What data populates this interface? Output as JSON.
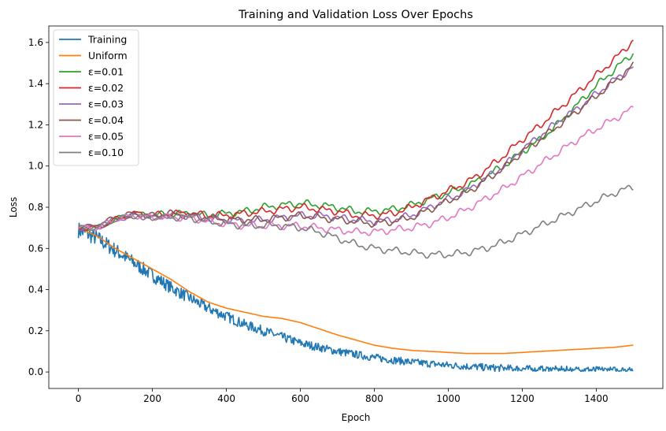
{
  "chart_data": {
    "type": "line",
    "title": "Training and Validation Loss Over Epochs",
    "xlabel": "Epoch",
    "ylabel": "Loss",
    "xlim": [
      -80,
      1580
    ],
    "ylim": [
      -0.08,
      1.68
    ],
    "xticks": [
      0,
      200,
      400,
      600,
      800,
      1000,
      1200,
      1400
    ],
    "yticks": [
      0.0,
      0.2,
      0.4,
      0.6,
      0.8,
      1.0,
      1.2,
      1.4,
      1.6
    ],
    "grid": false,
    "legend_position": "top-left",
    "series": [
      {
        "name": "Training",
        "color": "#1f77b4",
        "noise": 0.018,
        "x": [
          0,
          50,
          100,
          150,
          200,
          250,
          300,
          350,
          400,
          450,
          500,
          550,
          600,
          650,
          700,
          750,
          800,
          850,
          900,
          950,
          1000,
          1050,
          1100,
          1150,
          1200,
          1250,
          1300,
          1350,
          1400,
          1450,
          1500
        ],
        "y": [
          0.69,
          0.65,
          0.59,
          0.53,
          0.47,
          0.41,
          0.36,
          0.31,
          0.27,
          0.23,
          0.2,
          0.17,
          0.14,
          0.12,
          0.1,
          0.085,
          0.07,
          0.058,
          0.048,
          0.04,
          0.033,
          0.027,
          0.022,
          0.018,
          0.015,
          0.013,
          0.011,
          0.01,
          0.009,
          0.008,
          0.008
        ]
      },
      {
        "name": "Uniform",
        "color": "#ff7f0e",
        "noise": 0.0,
        "x": [
          0,
          50,
          100,
          150,
          200,
          250,
          300,
          350,
          400,
          450,
          500,
          550,
          600,
          650,
          700,
          750,
          800,
          850,
          900,
          950,
          1000,
          1050,
          1100,
          1150,
          1200,
          1250,
          1300,
          1350,
          1400,
          1450,
          1500
        ],
        "y": [
          0.7,
          0.66,
          0.6,
          0.55,
          0.5,
          0.45,
          0.39,
          0.34,
          0.31,
          0.29,
          0.27,
          0.26,
          0.24,
          0.21,
          0.18,
          0.155,
          0.13,
          0.115,
          0.105,
          0.1,
          0.095,
          0.09,
          0.09,
          0.09,
          0.095,
          0.1,
          0.105,
          0.11,
          0.115,
          0.12,
          0.13
        ]
      },
      {
        "name": "ε=0.01",
        "color": "#2ca02c",
        "noise": 0.0,
        "x": [
          0,
          50,
          100,
          150,
          200,
          250,
          300,
          350,
          400,
          450,
          500,
          550,
          600,
          650,
          700,
          750,
          800,
          850,
          900,
          950,
          1000,
          1050,
          1100,
          1150,
          1200,
          1250,
          1300,
          1350,
          1400,
          1450,
          1500
        ],
        "y": [
          0.7,
          0.7,
          0.74,
          0.77,
          0.76,
          0.77,
          0.77,
          0.76,
          0.77,
          0.78,
          0.8,
          0.81,
          0.82,
          0.81,
          0.8,
          0.78,
          0.78,
          0.79,
          0.81,
          0.84,
          0.87,
          0.9,
          0.95,
          1.0,
          1.07,
          1.13,
          1.21,
          1.3,
          1.39,
          1.47,
          1.55
        ]
      },
      {
        "name": "ε=0.02",
        "color": "#d62728",
        "noise": 0.0,
        "x": [
          0,
          50,
          100,
          150,
          200,
          250,
          300,
          350,
          400,
          450,
          500,
          550,
          600,
          650,
          700,
          750,
          800,
          850,
          900,
          950,
          1000,
          1050,
          1100,
          1150,
          1200,
          1250,
          1300,
          1350,
          1400,
          1450,
          1500
        ],
        "y": [
          0.7,
          0.7,
          0.74,
          0.77,
          0.76,
          0.77,
          0.77,
          0.76,
          0.76,
          0.77,
          0.78,
          0.79,
          0.8,
          0.79,
          0.78,
          0.76,
          0.76,
          0.77,
          0.8,
          0.84,
          0.88,
          0.92,
          0.98,
          1.05,
          1.13,
          1.2,
          1.28,
          1.36,
          1.44,
          1.52,
          1.61
        ]
      },
      {
        "name": "ε=0.03",
        "color": "#9467bd",
        "noise": 0.0,
        "x": [
          0,
          50,
          100,
          150,
          200,
          250,
          300,
          350,
          400,
          450,
          500,
          550,
          600,
          650,
          700,
          750,
          800,
          850,
          900,
          950,
          1000,
          1050,
          1100,
          1150,
          1200,
          1250,
          1300,
          1350,
          1400,
          1450,
          1500
        ],
        "y": [
          0.7,
          0.7,
          0.74,
          0.76,
          0.75,
          0.76,
          0.76,
          0.74,
          0.74,
          0.73,
          0.74,
          0.75,
          0.76,
          0.76,
          0.75,
          0.74,
          0.73,
          0.74,
          0.76,
          0.8,
          0.84,
          0.88,
          0.94,
          1.0,
          1.08,
          1.15,
          1.22,
          1.28,
          1.35,
          1.42,
          1.48
        ]
      },
      {
        "name": "ε=0.04",
        "color": "#8c564b",
        "noise": 0.0,
        "x": [
          0,
          50,
          100,
          150,
          200,
          250,
          300,
          350,
          400,
          450,
          500,
          550,
          600,
          650,
          700,
          750,
          800,
          850,
          900,
          950,
          1000,
          1050,
          1100,
          1150,
          1200,
          1250,
          1300,
          1350,
          1400,
          1450,
          1500
        ],
        "y": [
          0.7,
          0.71,
          0.75,
          0.77,
          0.76,
          0.77,
          0.76,
          0.75,
          0.74,
          0.74,
          0.74,
          0.75,
          0.76,
          0.75,
          0.74,
          0.73,
          0.72,
          0.73,
          0.75,
          0.79,
          0.83,
          0.87,
          0.93,
          0.99,
          1.07,
          1.13,
          1.2,
          1.27,
          1.34,
          1.41,
          1.49
        ]
      },
      {
        "name": "ε=0.05",
        "color": "#e377c2",
        "noise": 0.0,
        "x": [
          0,
          50,
          100,
          150,
          200,
          250,
          300,
          350,
          400,
          450,
          500,
          550,
          600,
          650,
          700,
          750,
          800,
          850,
          900,
          950,
          1000,
          1050,
          1100,
          1150,
          1200,
          1250,
          1300,
          1350,
          1400,
          1450,
          1500
        ],
        "y": [
          0.7,
          0.7,
          0.74,
          0.76,
          0.75,
          0.75,
          0.75,
          0.73,
          0.72,
          0.71,
          0.71,
          0.71,
          0.71,
          0.7,
          0.69,
          0.68,
          0.68,
          0.69,
          0.7,
          0.72,
          0.75,
          0.79,
          0.84,
          0.89,
          0.95,
          1.01,
          1.07,
          1.13,
          1.18,
          1.23,
          1.28
        ]
      },
      {
        "name": "ε=0.10",
        "color": "#7f7f7f",
        "noise": 0.0,
        "x": [
          0,
          50,
          100,
          150,
          200,
          250,
          300,
          350,
          400,
          450,
          500,
          550,
          600,
          650,
          700,
          750,
          800,
          850,
          900,
          950,
          1000,
          1050,
          1100,
          1150,
          1200,
          1250,
          1300,
          1350,
          1400,
          1450,
          1500
        ],
        "y": [
          0.7,
          0.7,
          0.74,
          0.76,
          0.75,
          0.75,
          0.75,
          0.73,
          0.72,
          0.71,
          0.71,
          0.71,
          0.7,
          0.68,
          0.65,
          0.62,
          0.6,
          0.59,
          0.58,
          0.57,
          0.57,
          0.58,
          0.6,
          0.63,
          0.67,
          0.71,
          0.75,
          0.79,
          0.83,
          0.87,
          0.9
        ]
      }
    ]
  }
}
